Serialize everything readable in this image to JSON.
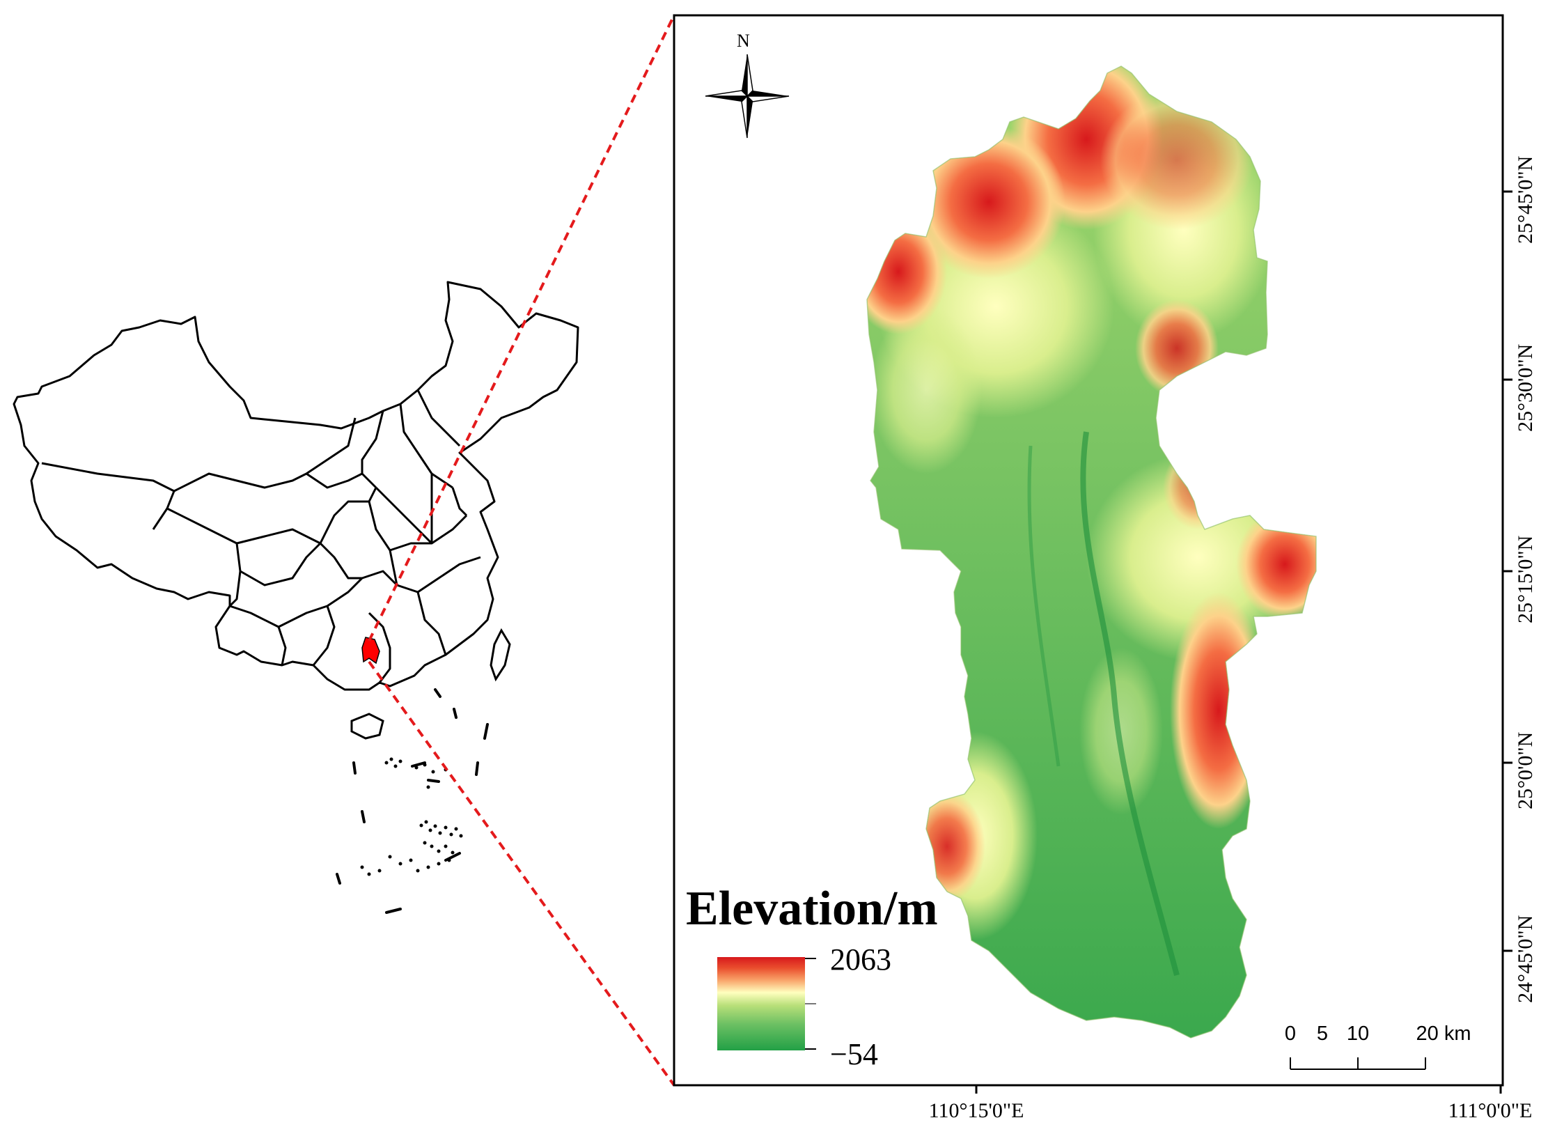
{
  "legend": {
    "title": "Elevation/m",
    "max_label": "2063",
    "min_label": "−54",
    "colors": [
      "#d7191c",
      "#f46d43",
      "#fdae61",
      "#ffffbf",
      "#a6d96a",
      "#66bd63",
      "#1a9641"
    ]
  },
  "north_arrow": {
    "label": "N",
    "icon": "compass-rose-icon"
  },
  "lat_labels": [
    "25°45'0\"N",
    "25°30'0\"N",
    "25°15'0\"N",
    "25°0'0\"N",
    "24°45'0\"N"
  ],
  "lon_labels": [
    "110°15'0\"E",
    "111°0'0\"E"
  ],
  "scale_bar": {
    "labels": [
      "0",
      "5",
      "10",
      "20 km"
    ]
  },
  "colors": {
    "study_area_highlight": "#ff0000",
    "leader_line": "#e41a1c",
    "frame": "#000000"
  }
}
